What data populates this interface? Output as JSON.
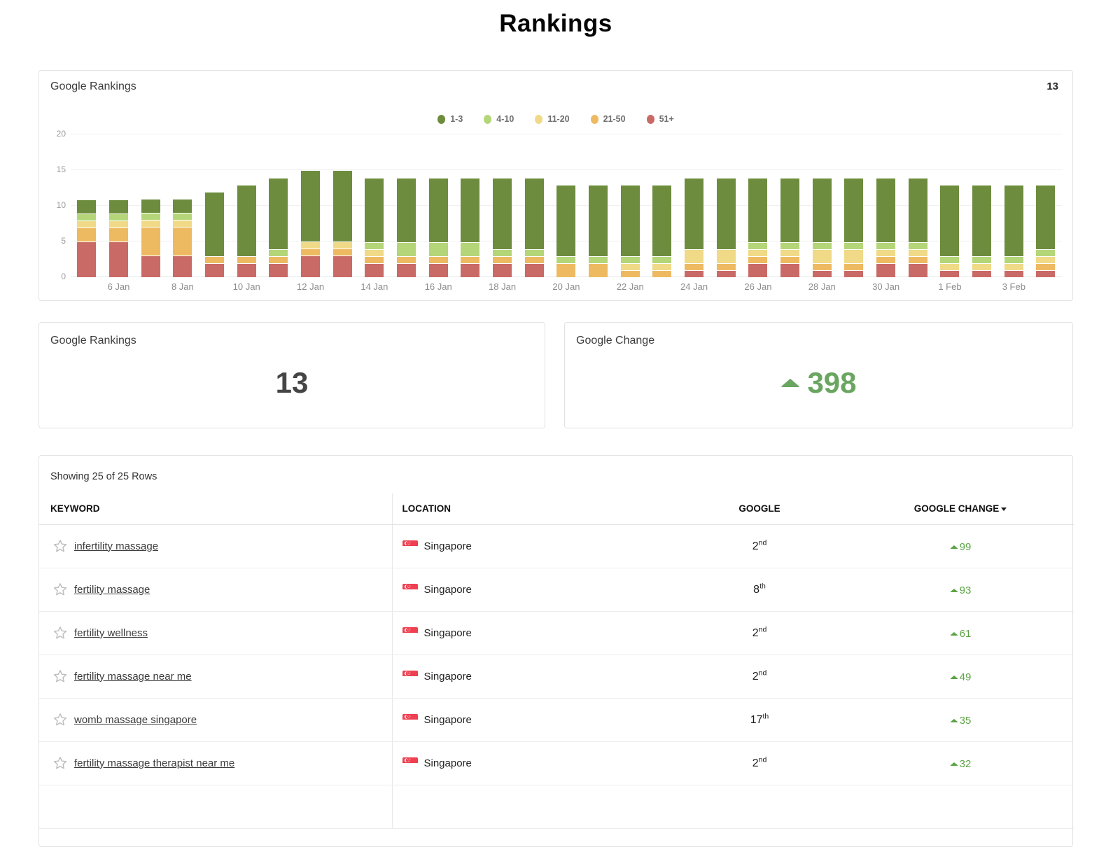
{
  "page_title": "Rankings",
  "chart_card": {
    "title": "Google Rankings",
    "total": "13",
    "legend": [
      {
        "label": "1-3",
        "color": "#6d8c3d"
      },
      {
        "label": "4-10",
        "color": "#b5d678"
      },
      {
        "label": "11-20",
        "color": "#f0da87"
      },
      {
        "label": "21-50",
        "color": "#eeba61"
      },
      {
        "label": "51+",
        "color": "#c96a67"
      }
    ]
  },
  "chart_data": {
    "type": "bar",
    "stacked": true,
    "title": "Google Rankings",
    "x": [
      "5 Jan",
      "6 Jan",
      "7 Jan",
      "8 Jan",
      "9 Jan",
      "10 Jan",
      "11 Jan",
      "12 Jan",
      "13 Jan",
      "14 Jan",
      "15 Jan",
      "16 Jan",
      "17 Jan",
      "18 Jan",
      "19 Jan",
      "20 Jan",
      "21 Jan",
      "22 Jan",
      "23 Jan",
      "24 Jan",
      "25 Jan",
      "26 Jan",
      "27 Jan",
      "28 Jan",
      "29 Jan",
      "30 Jan",
      "31 Jan",
      "1 Feb",
      "2 Feb",
      "3 Feb",
      "4 Feb"
    ],
    "labeled_ticks": [
      "6 Jan",
      "8 Jan",
      "10 Jan",
      "12 Jan",
      "14 Jan",
      "16 Jan",
      "18 Jan",
      "20 Jan",
      "22 Jan",
      "24 Jan",
      "26 Jan",
      "28 Jan",
      "30 Jan",
      "1 Feb",
      "3 Feb"
    ],
    "stack_order": "bottom_to_top",
    "series": [
      {
        "name": "51+",
        "color": "#c96a67",
        "values": [
          5,
          5,
          3,
          3,
          2,
          2,
          2,
          3,
          3,
          2,
          2,
          2,
          2,
          2,
          2,
          0,
          0,
          0,
          0,
          1,
          1,
          2,
          2,
          1,
          1,
          2,
          2,
          1,
          1,
          1,
          1
        ]
      },
      {
        "name": "21-50",
        "color": "#eeba61",
        "values": [
          2,
          2,
          4,
          4,
          1,
          1,
          1,
          1,
          1,
          1,
          1,
          1,
          1,
          1,
          1,
          2,
          2,
          1,
          1,
          1,
          1,
          1,
          1,
          1,
          1,
          1,
          1,
          0,
          0,
          0,
          1
        ]
      },
      {
        "name": "11-20",
        "color": "#f0da87",
        "values": [
          1,
          1,
          1,
          1,
          0,
          0,
          0,
          1,
          1,
          1,
          0,
          0,
          0,
          0,
          0,
          0,
          0,
          1,
          1,
          2,
          2,
          1,
          1,
          2,
          2,
          1,
          1,
          1,
          1,
          1,
          1
        ]
      },
      {
        "name": "4-10",
        "color": "#b5d678",
        "values": [
          1,
          1,
          1,
          1,
          0,
          0,
          1,
          0,
          0,
          1,
          2,
          2,
          2,
          1,
          1,
          1,
          1,
          1,
          1,
          0,
          0,
          1,
          1,
          1,
          1,
          1,
          1,
          1,
          1,
          1,
          1
        ]
      },
      {
        "name": "1-3",
        "color": "#6d8c3d",
        "values": [
          2,
          2,
          2,
          2,
          9,
          10,
          10,
          10,
          10,
          9,
          9,
          9,
          9,
          10,
          10,
          10,
          10,
          10,
          10,
          10,
          10,
          9,
          9,
          9,
          9,
          9,
          9,
          10,
          10,
          10,
          9
        ]
      }
    ],
    "ylim": [
      0,
      20
    ],
    "yticks": [
      0,
      5,
      10,
      15,
      20
    ],
    "grid": true,
    "legend_position": "top"
  },
  "summary_cards": [
    {
      "title": "Google Rankings",
      "value": "13"
    },
    {
      "title": "Google Change",
      "value": "398",
      "direction": "up",
      "color": "#6aa661"
    }
  ],
  "table": {
    "showing": "Showing 25 of 25 Rows",
    "columns": [
      "KEYWORD",
      "LOCATION",
      "GOOGLE",
      "GOOGLE CHANGE"
    ],
    "sorted_by": "GOOGLE CHANGE",
    "sort_direction": "desc",
    "rows": [
      {
        "keyword": "infertility massage",
        "location": "Singapore",
        "google_rank": "2",
        "google_rank_suffix": "nd",
        "google_change": "99",
        "change_direction": "up"
      },
      {
        "keyword": "fertility massage",
        "location": "Singapore",
        "google_rank": "8",
        "google_rank_suffix": "th",
        "google_change": "93",
        "change_direction": "up"
      },
      {
        "keyword": "fertility wellness",
        "location": "Singapore",
        "google_rank": "2",
        "google_rank_suffix": "nd",
        "google_change": "61",
        "change_direction": "up"
      },
      {
        "keyword": "fertility massage near me",
        "location": "Singapore",
        "google_rank": "2",
        "google_rank_suffix": "nd",
        "google_change": "49",
        "change_direction": "up"
      },
      {
        "keyword": "womb massage singapore",
        "location": "Singapore",
        "google_rank": "17",
        "google_rank_suffix": "th",
        "google_change": "35",
        "change_direction": "up"
      },
      {
        "keyword": "fertility massage therapist near me",
        "location": "Singapore",
        "google_rank": "2",
        "google_rank_suffix": "nd",
        "google_change": "32",
        "change_direction": "up"
      }
    ]
  }
}
